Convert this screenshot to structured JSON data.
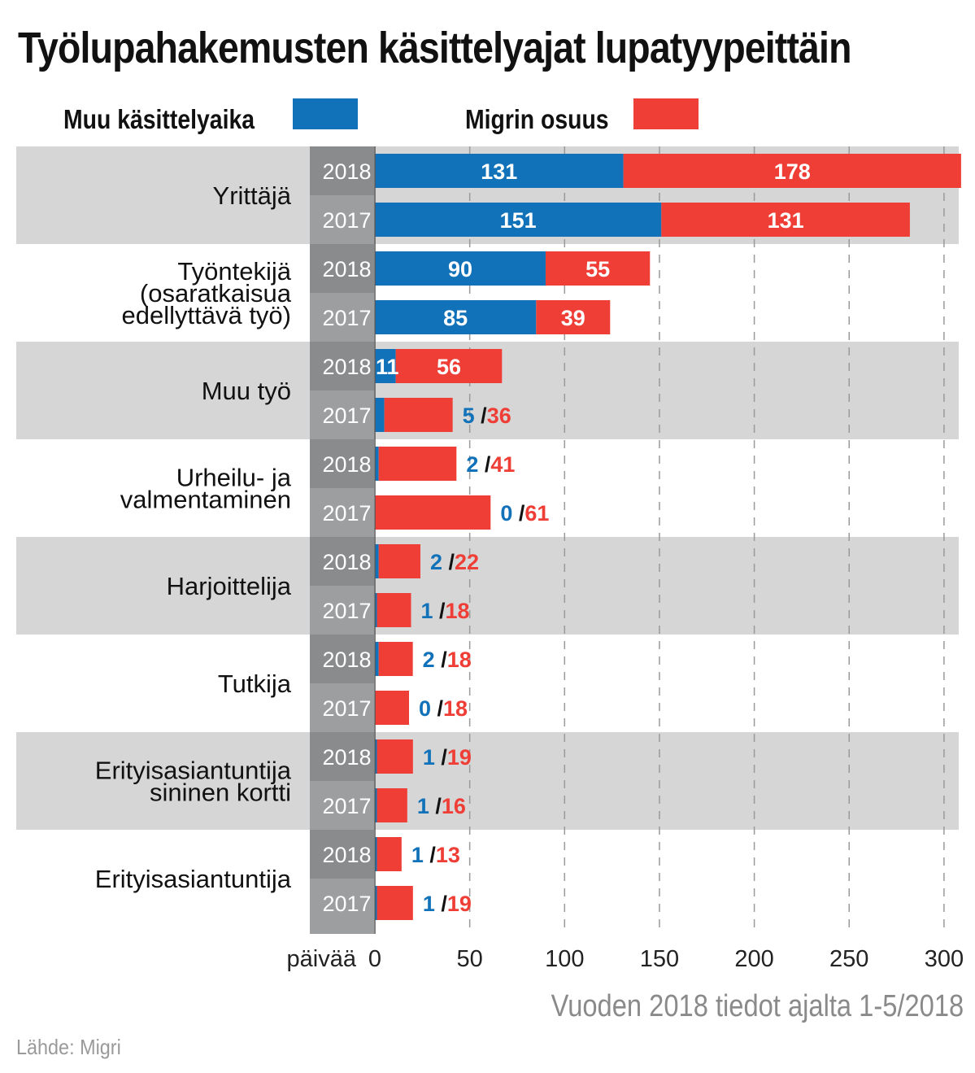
{
  "chart_data": {
    "type": "bar",
    "title": "Työlupahakemusten käsittelyajat lupatyypeittäin",
    "subtitle": "Vuoden 2018 tiedot ajalta 1-5/2018",
    "source": "Lähde: Migri",
    "xlabel": "päivää",
    "xlim": [
      0,
      310
    ],
    "x_ticks": [
      0,
      50,
      100,
      150,
      200,
      250,
      300
    ],
    "grid": true,
    "stacked": true,
    "orientation": "horizontal",
    "colors": {
      "muu": "#1272b9",
      "migri": "#ef3e36",
      "rowband": "#d6d6d7",
      "yearband": "#9d9ea0",
      "yearband_dark": "#8a8b8d"
    },
    "series": [
      {
        "name": "Muu käsittelyaika",
        "key": "muu"
      },
      {
        "name": "Migrin osuus",
        "key": "migri"
      }
    ],
    "groups": [
      {
        "label": [
          "Yrittäjä"
        ],
        "shaded": true,
        "rows": [
          {
            "year": "2018",
            "muu": 131,
            "migri": 178,
            "label_style": "inside"
          },
          {
            "year": "2017",
            "muu": 151,
            "migri": 131,
            "label_style": "inside"
          }
        ]
      },
      {
        "label": [
          "Työntekijä",
          "(osaratkaisua",
          "edellyttävä työ)"
        ],
        "shaded": false,
        "rows": [
          {
            "year": "2018",
            "muu": 90,
            "migri": 55,
            "label_style": "inside"
          },
          {
            "year": "2017",
            "muu": 85,
            "migri": 39,
            "label_style": "inside"
          }
        ]
      },
      {
        "label": [
          "Muu työ"
        ],
        "shaded": true,
        "rows": [
          {
            "year": "2018",
            "muu": 11,
            "migri": 56,
            "label_style": "inside"
          },
          {
            "year": "2017",
            "muu": 5,
            "migri": 36,
            "label_style": "outside"
          }
        ]
      },
      {
        "label": [
          "Urheilu- ja",
          "valmentaminen"
        ],
        "shaded": false,
        "rows": [
          {
            "year": "2018",
            "muu": 2,
            "migri": 41,
            "label_style": "outside"
          },
          {
            "year": "2017",
            "muu": 0,
            "migri": 61,
            "label_style": "outside"
          }
        ]
      },
      {
        "label": [
          "Harjoittelija"
        ],
        "shaded": true,
        "rows": [
          {
            "year": "2018",
            "muu": 2,
            "migri": 22,
            "label_style": "outside"
          },
          {
            "year": "2017",
            "muu": 1,
            "migri": 18,
            "label_style": "outside"
          }
        ]
      },
      {
        "label": [
          "Tutkija"
        ],
        "shaded": false,
        "rows": [
          {
            "year": "2018",
            "muu": 2,
            "migri": 18,
            "label_style": "outside"
          },
          {
            "year": "2017",
            "muu": 0,
            "migri": 18,
            "label_style": "outside"
          }
        ]
      },
      {
        "label": [
          "Erityisasiantuntija",
          "sininen kortti"
        ],
        "shaded": true,
        "rows": [
          {
            "year": "2018",
            "muu": 1,
            "migri": 19,
            "label_style": "outside"
          },
          {
            "year": "2017",
            "muu": 1,
            "migri": 16,
            "label_style": "outside"
          }
        ]
      },
      {
        "label": [
          "Erityisasiantuntija"
        ],
        "shaded": false,
        "rows": [
          {
            "year": "2018",
            "muu": 1,
            "migri": 13,
            "label_style": "outside"
          },
          {
            "year": "2017",
            "muu": 1,
            "migri": 19,
            "label_style": "outside"
          }
        ]
      }
    ]
  }
}
